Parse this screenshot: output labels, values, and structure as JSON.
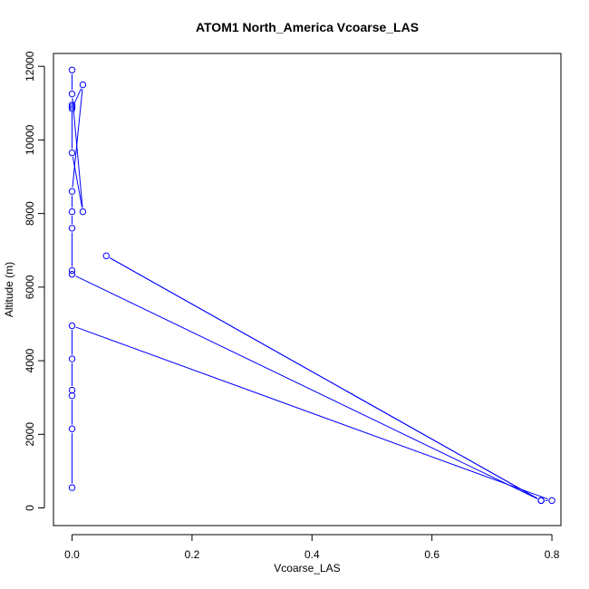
{
  "chart_data": {
    "type": "line",
    "title": "ATOM1 North_America Vcoarse_LAS",
    "xlabel": "Vcoarse_LAS",
    "ylabel": "Altitude (m)",
    "xlim": [
      -0.031,
      0.815
    ],
    "ylim": [
      -480,
      12350
    ],
    "xticks": [
      0,
      0.2,
      0.4,
      0.6,
      0.8
    ],
    "xtick_labels": [
      "0.0",
      "0.2",
      "0.4",
      "0.6",
      "0.8"
    ],
    "yticks": [
      0,
      2000,
      4000,
      6000,
      8000,
      10000,
      12000
    ],
    "ytick_labels": [
      "0",
      "2000",
      "4000",
      "6000",
      "8000",
      "10000",
      "12000"
    ],
    "grid": false,
    "series_color": "#0000ff",
    "series": [
      {
        "x": [
          0.0,
          0.0,
          0.0,
          0.0,
          0.0,
          0.0,
          0.8,
          0.782,
          0.057,
          0.782,
          0.0,
          0.0,
          0.0,
          0.0,
          0.0,
          0.018,
          0.0,
          0.0,
          0.0,
          0.0,
          0.018,
          0.0,
          0.0
        ],
        "y": [
          550,
          2150,
          3050,
          3200,
          4050,
          4950,
          200,
          200,
          6850,
          200,
          6350,
          6450,
          7600,
          8050,
          8600,
          11500,
          10850,
          10950,
          10900,
          9650,
          8050,
          11250,
          11900
        ]
      }
    ]
  }
}
